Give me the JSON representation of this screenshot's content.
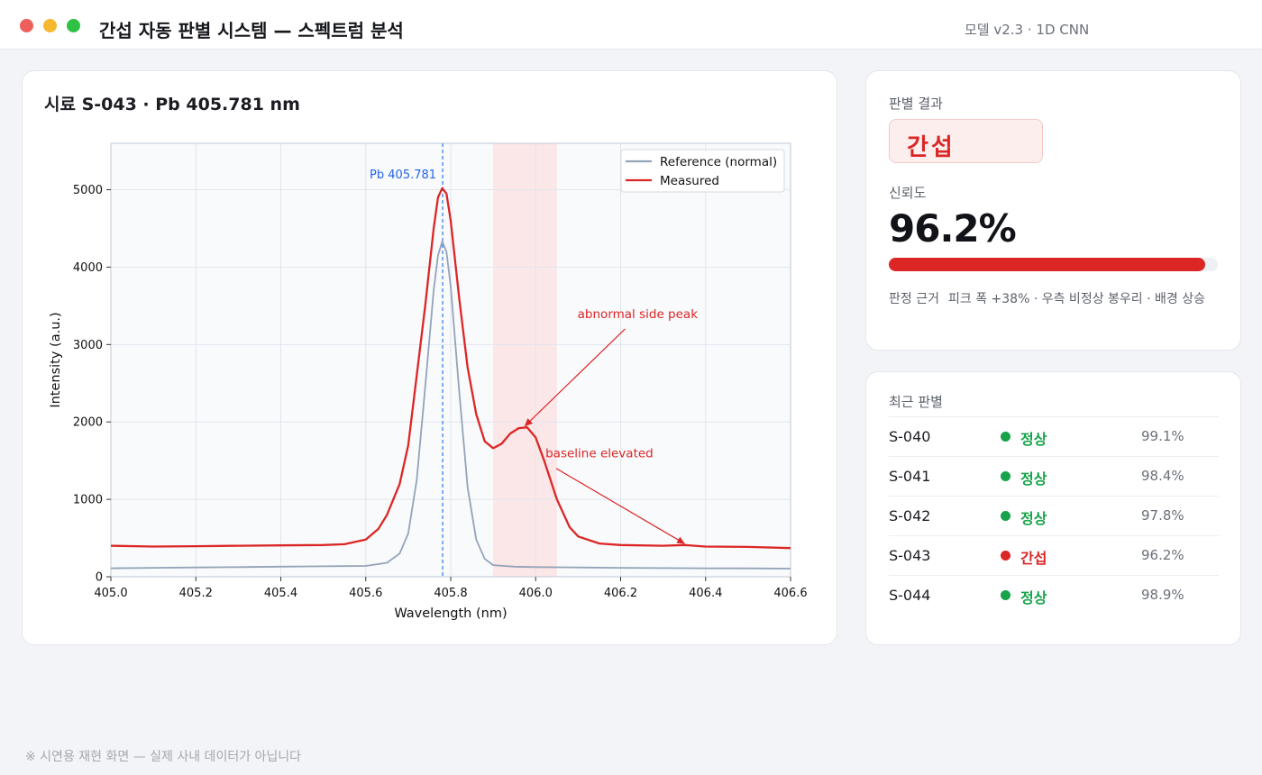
{
  "window": {
    "title": "간섭 자동 판별 시스템 — 스펙트럼 분석",
    "model_info": "모델 v2.3 · 1D CNN"
  },
  "chart_panel": {
    "title": "시료 S-043 · Pb 405.781 nm"
  },
  "chart_data": {
    "type": "line",
    "xlabel": "Wavelength (nm)",
    "ylabel": "Intensity (a.u.)",
    "xlim": [
      405.0,
      406.6
    ],
    "ylim": [
      0,
      5600
    ],
    "xticks": [
      405.0,
      405.2,
      405.4,
      405.6,
      405.8,
      406.0,
      406.2,
      406.4,
      406.6
    ],
    "xtick_labels": [
      "405.0",
      "405.2",
      "405.4",
      "405.6",
      "405.8",
      "406.0",
      "406.2",
      "406.4",
      "406.6"
    ],
    "yticks": [
      0,
      1000,
      2000,
      3000,
      4000,
      5000
    ],
    "ytick_labels": [
      "0",
      "1000",
      "2000",
      "3000",
      "4000",
      "5000"
    ],
    "grid": true,
    "legend_position": "top-right",
    "series": [
      {
        "name": "Reference (normal)",
        "color": "#94a3b8",
        "x": [
          405.0,
          405.1,
          405.2,
          405.3,
          405.4,
          405.5,
          405.6,
          405.65,
          405.68,
          405.7,
          405.72,
          405.74,
          405.76,
          405.77,
          405.78,
          405.79,
          405.8,
          405.82,
          405.84,
          405.86,
          405.88,
          405.9,
          405.95,
          406.0,
          406.1,
          406.2,
          406.3,
          406.4,
          406.5,
          406.6
        ],
        "values": [
          110,
          115,
          120,
          125,
          130,
          135,
          140,
          180,
          300,
          560,
          1250,
          2450,
          3700,
          4150,
          4330,
          4200,
          3750,
          2400,
          1150,
          480,
          230,
          150,
          130,
          125,
          120,
          115,
          112,
          110,
          108,
          105
        ]
      },
      {
        "name": "Measured",
        "color": "#dc2626",
        "x": [
          405.0,
          405.1,
          405.2,
          405.3,
          405.4,
          405.5,
          405.55,
          405.6,
          405.63,
          405.65,
          405.68,
          405.7,
          405.72,
          405.74,
          405.76,
          405.77,
          405.78,
          405.79,
          405.8,
          405.82,
          405.84,
          405.86,
          405.88,
          405.9,
          405.92,
          405.94,
          405.96,
          405.98,
          406.0,
          406.02,
          406.05,
          406.08,
          406.1,
          406.15,
          406.2,
          406.3,
          406.35,
          406.4,
          406.5,
          406.6
        ],
        "values": [
          400,
          390,
          395,
          400,
          405,
          410,
          420,
          480,
          620,
          800,
          1200,
          1700,
          2600,
          3500,
          4500,
          4900,
          5020,
          4950,
          4600,
          3600,
          2700,
          2100,
          1750,
          1660,
          1720,
          1850,
          1920,
          1930,
          1800,
          1500,
          1000,
          640,
          520,
          430,
          410,
          400,
          410,
          390,
          385,
          370
        ]
      }
    ],
    "reference_line": {
      "x": 405.781,
      "label": "Pb 405.781"
    },
    "highlight_region": {
      "x_start": 405.9,
      "x_end": 406.05
    },
    "annotations": [
      {
        "text": "abnormal side peak",
        "target_x": 405.975,
        "target_y": 1950,
        "text_x": 406.24,
        "text_y": 3340
      },
      {
        "text": "baseline elevated",
        "target_x": 406.35,
        "target_y": 430,
        "text_x": 406.15,
        "text_y": 1540
      }
    ]
  },
  "result": {
    "label": "판별 결과",
    "verdict": "간섭",
    "confidence_label": "신뢰도",
    "confidence": "96.2%",
    "confidence_fraction": 0.962,
    "reason_label": "판정 근거",
    "reason_text": "피크 폭 +38% · 우측 비정상 봉우리 · 배경 상승",
    "bar_color": "#dc2626"
  },
  "history": {
    "title": "최근 판별",
    "rows": [
      {
        "id": "S-040",
        "status": "정상",
        "kind": "normal",
        "confidence": "99.1%"
      },
      {
        "id": "S-041",
        "status": "정상",
        "kind": "normal",
        "confidence": "98.4%"
      },
      {
        "id": "S-042",
        "status": "정상",
        "kind": "normal",
        "confidence": "97.8%"
      },
      {
        "id": "S-043",
        "status": "간섭",
        "kind": "interference",
        "confidence": "96.2%"
      },
      {
        "id": "S-044",
        "status": "정상",
        "kind": "normal",
        "confidence": "98.9%"
      }
    ],
    "colors": {
      "normal": "#16a34a",
      "interference": "#dc2626"
    }
  },
  "footer": {
    "note": "※ 시연용 재현 화면 — 실제 사내 데이터가 아닙니다"
  }
}
